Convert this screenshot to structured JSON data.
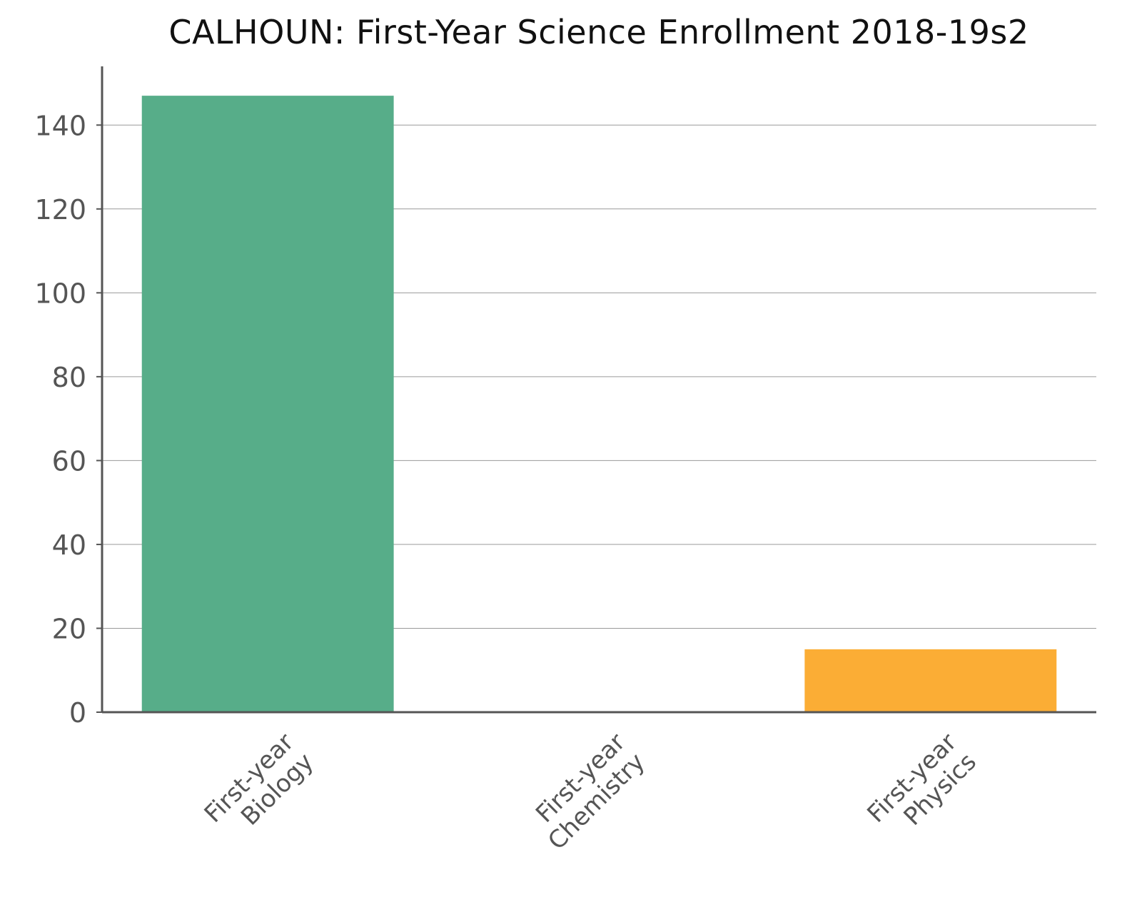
{
  "chart_data": {
    "type": "bar",
    "title": "CALHOUN: First-Year Science Enrollment 2018-19s2",
    "xlabel": "",
    "ylabel": "",
    "categories": [
      [
        "First-year",
        "Biology"
      ],
      [
        "First-year",
        "Chemistry"
      ],
      [
        "First-year",
        "Physics"
      ]
    ],
    "values": [
      147,
      0,
      15
    ],
    "bar_colors": [
      "#57ad89",
      "#3f7fbf",
      "#fbad35"
    ],
    "ylim": [
      0,
      154
    ],
    "yticks": [
      0,
      20,
      40,
      60,
      80,
      100,
      120,
      140
    ],
    "grid": true,
    "legend": "none"
  }
}
